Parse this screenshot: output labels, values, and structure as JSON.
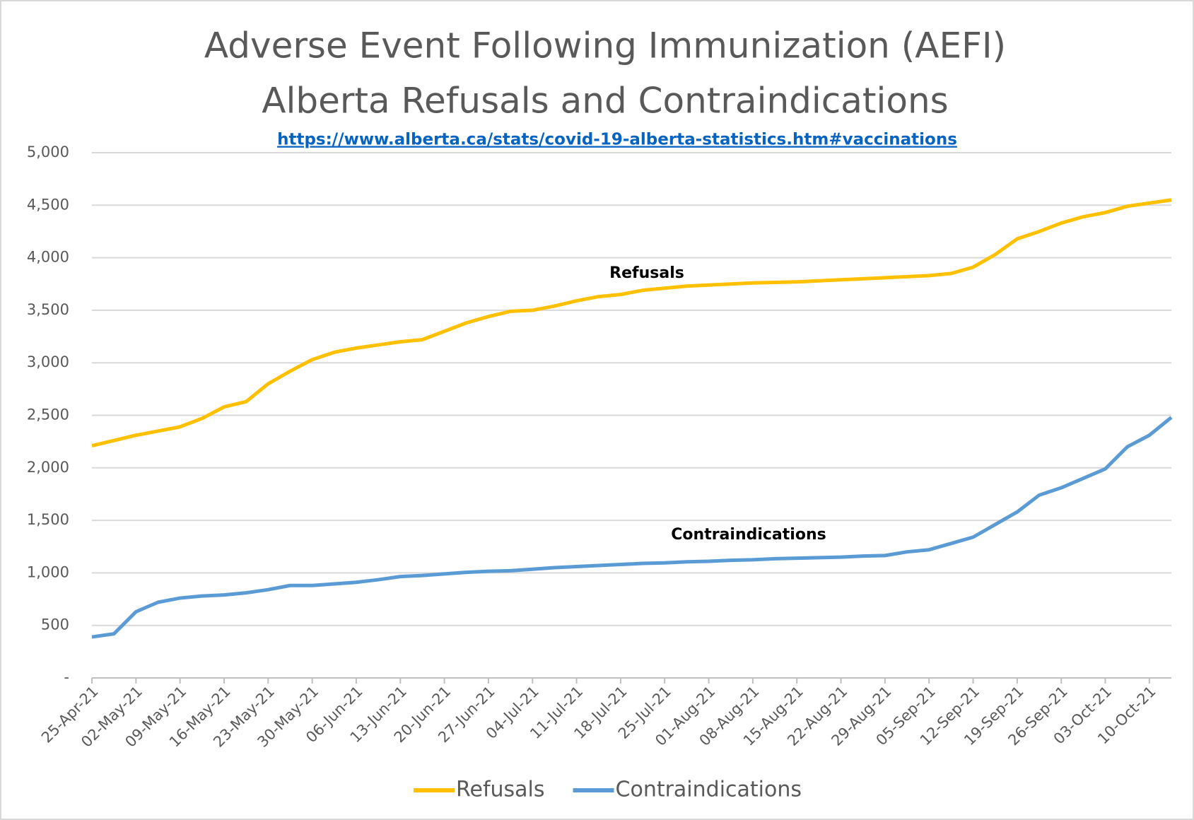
{
  "chart_data": {
    "type": "line",
    "title": "Adverse Event Following Immunization (AEFI)",
    "subtitle": "Alberta Refusals and Contraindications",
    "source": "https://www.alberta.ca/stats/covid-19-alberta-statistics.htm#vaccinations",
    "annotations": [
      "Refusals",
      "Contraindications"
    ],
    "categories": [
      "25-Apr-21",
      null,
      "02-May-21",
      null,
      "09-May-21",
      null,
      "16-May-21",
      null,
      "23-May-21",
      null,
      "30-May-21",
      null,
      "06-Jun-21",
      null,
      "13-Jun-21",
      null,
      "20-Jun-21",
      null,
      "27-Jun-21",
      null,
      "04-Jul-21",
      null,
      "11-Jul-21",
      null,
      "18-Jul-21",
      null,
      "25-Jul-21",
      null,
      "01-Aug-21",
      null,
      "08-Aug-21",
      null,
      "15-Aug-21",
      null,
      "22-Aug-21",
      null,
      "29-Aug-21",
      null,
      "05-Sep-21",
      null,
      "12-Sep-21",
      null,
      "19-Sep-21",
      null,
      "26-Sep-21",
      null,
      "03-Oct-21",
      null,
      "10-Oct-21",
      null
    ],
    "series": [
      {
        "name": "Refusals",
        "color": "#ffc000",
        "values": [
          2210,
          2260,
          2310,
          2350,
          2390,
          2470,
          2580,
          2630,
          2800,
          2920,
          3030,
          3100,
          3140,
          3170,
          3200,
          3220,
          3300,
          3380,
          3440,
          3490,
          3500,
          3540,
          3590,
          3630,
          3650,
          3690,
          3710,
          3730,
          3740,
          3750,
          3760,
          3765,
          3770,
          3780,
          3790,
          3800,
          3810,
          3820,
          3830,
          3850,
          3910,
          4030,
          4180,
          4250,
          4330,
          4390,
          4430,
          4490,
          4520,
          4550
        ]
      },
      {
        "name": "Contraindications",
        "color": "#5b9bd5",
        "values": [
          390,
          420,
          630,
          720,
          760,
          780,
          790,
          810,
          840,
          880,
          880,
          895,
          910,
          935,
          965,
          975,
          990,
          1005,
          1015,
          1020,
          1035,
          1050,
          1060,
          1070,
          1080,
          1090,
          1095,
          1105,
          1110,
          1120,
          1125,
          1135,
          1140,
          1145,
          1150,
          1160,
          1165,
          1200,
          1220,
          1280,
          1340,
          1460,
          1580,
          1740,
          1810,
          1900,
          1990,
          2200,
          2310,
          2480
        ]
      }
    ],
    "ylim": [
      0,
      5000
    ],
    "yticks": [
      {
        "value": 0,
        "label": "-"
      },
      500,
      {
        "value": 1000,
        "label": "1,000"
      },
      {
        "value": 1500,
        "label": "1,500"
      },
      {
        "value": 2000,
        "label": "2,000"
      },
      {
        "value": 2500,
        "label": "2,500"
      },
      {
        "value": 3000,
        "label": "3,000"
      },
      {
        "value": 3500,
        "label": "3,500"
      },
      {
        "value": 4000,
        "label": "4,000"
      },
      {
        "value": 4500,
        "label": "4,500"
      },
      {
        "value": 5000,
        "label": "5,000"
      }
    ],
    "grid": true,
    "legend": "bottom"
  }
}
